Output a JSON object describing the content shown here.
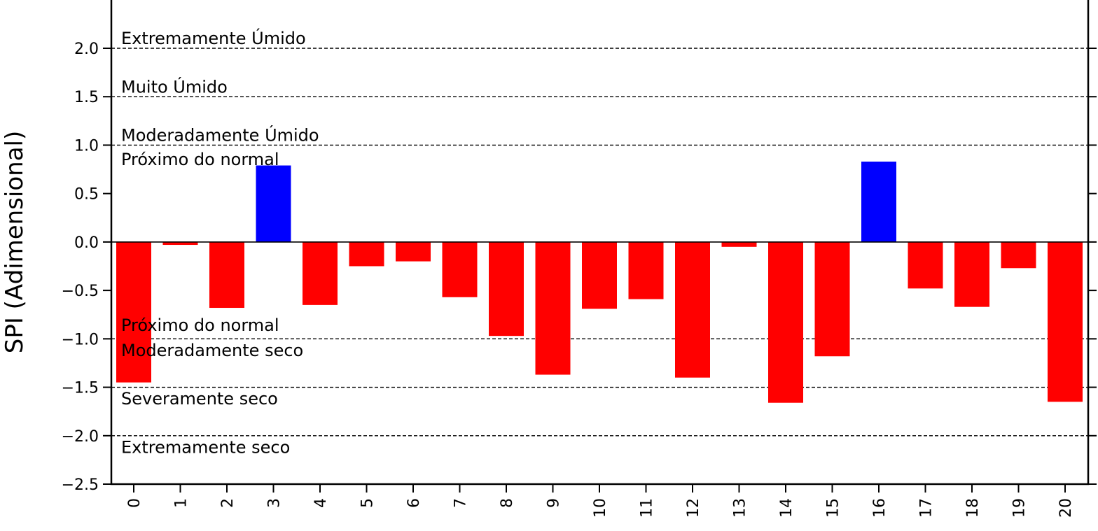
{
  "chart_data": {
    "type": "bar",
    "title": "",
    "xlabel": "",
    "ylabel": "SPI (Adimensional)",
    "categories": [
      "0",
      "1",
      "2",
      "3",
      "4",
      "5",
      "6",
      "7",
      "8",
      "9",
      "10",
      "11",
      "12",
      "13",
      "14",
      "15",
      "16",
      "17",
      "18",
      "19",
      "20"
    ],
    "values": [
      -1.45,
      -0.03,
      -0.68,
      0.79,
      -0.65,
      -0.25,
      -0.2,
      -0.57,
      -0.97,
      -1.37,
      -0.69,
      -0.59,
      -1.4,
      -0.05,
      -1.66,
      -1.18,
      0.83,
      -0.48,
      -0.67,
      -0.27,
      -1.65
    ],
    "ylim": [
      -2.5,
      2.5
    ],
    "yticks": [
      -2.5,
      -2.0,
      -1.5,
      -1.0,
      -0.5,
      0.0,
      0.5,
      1.0,
      1.5,
      2.0
    ],
    "ytick_labels": [
      "−2.5",
      "−2.0",
      "−1.5",
      "−1.0",
      "−0.5",
      "0.0",
      "0.5",
      "1.0",
      "1.5",
      "2.0"
    ],
    "positive_color": "#0000ff",
    "negative_color": "#ff0000",
    "threshold_lines": [
      2.0,
      1.5,
      1.0,
      -1.0,
      -1.5,
      -2.0
    ],
    "band_labels": [
      {
        "text": "Extremamente Úmido",
        "y": 2.1
      },
      {
        "text": "Muito Úmido",
        "y": 1.6
      },
      {
        "text": "Moderadamente Úmido",
        "y": 1.1
      },
      {
        "text": "Próximo do normal",
        "y": 0.85
      },
      {
        "text": "Próximo do normal",
        "y": -0.86
      },
      {
        "text": "Moderadamente seco",
        "y": -1.12
      },
      {
        "text": "Severamente seco",
        "y": -1.62
      },
      {
        "text": "Extremamente seco",
        "y": -2.12
      }
    ],
    "grid": false,
    "legend": "none"
  }
}
